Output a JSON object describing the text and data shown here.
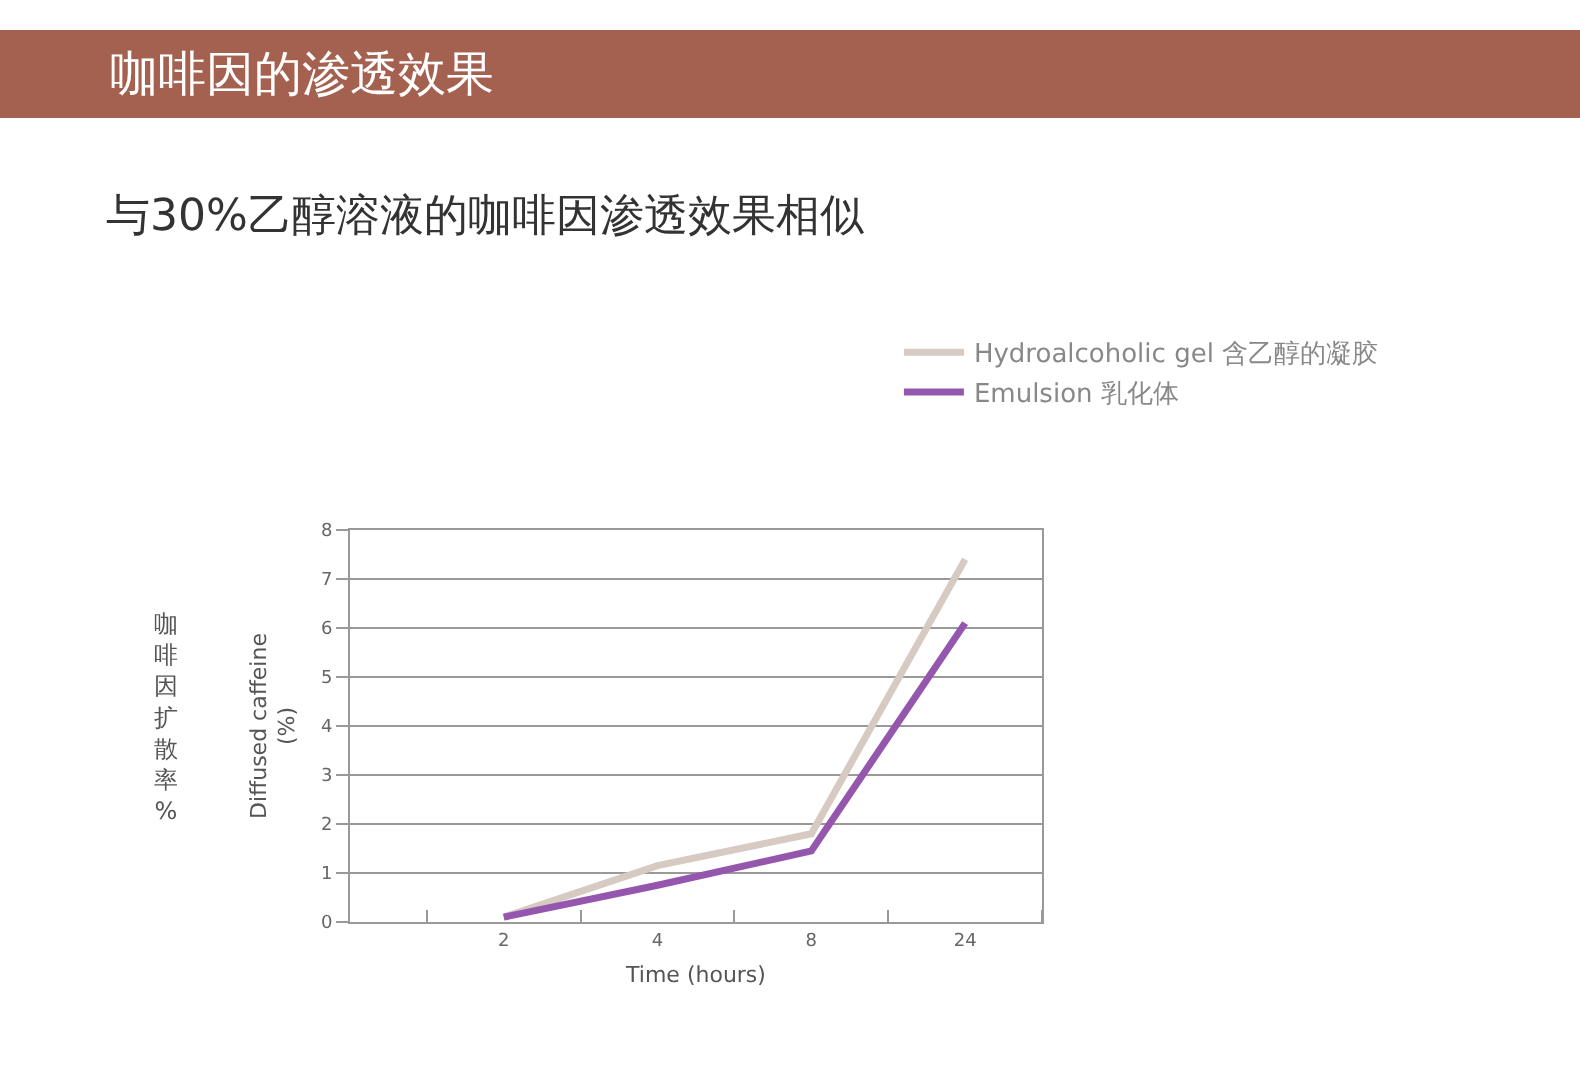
{
  "chart_data": {
    "type": "line",
    "title": "咖啡因的渗透效果",
    "subtitle": "与30%乙醇溶液的咖啡因渗透效果相似",
    "xlabel": "Time (hours)",
    "ylabel": "Diffused caffeine\n(%)",
    "annotations": [
      "咖啡因扩散率%"
    ],
    "categories": [
      null,
      "2",
      "4",
      "8",
      "24"
    ],
    "series": [
      {
        "name": "Hydroalcoholic gel 含乙醇的凝胶",
        "color": "#d6cac2",
        "values": [
          null,
          0.1,
          1.15,
          1.8,
          7.4
        ]
      },
      {
        "name": "Emulsion 乳化体",
        "color": "#9457ad",
        "values": [
          null,
          0.1,
          0.75,
          1.45,
          6.1
        ]
      }
    ],
    "ylim": [
      0,
      8
    ],
    "yticks": [
      0,
      1,
      2,
      3,
      4,
      5,
      6,
      7,
      8
    ],
    "grid": "y",
    "legend": "top right",
    "marker": "none",
    "line_style": "solid"
  }
}
